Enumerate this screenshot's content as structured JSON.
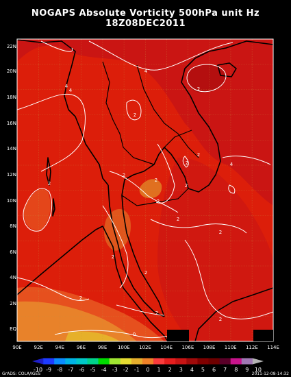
{
  "title": "NOGAPS Absolute Vorticity 500hPa unit Hz",
  "subtitle": "18Z08DEC2011",
  "lat_labels": [
    "22N",
    "20N",
    "18N",
    "16N",
    "14N",
    "12N",
    "10N",
    "8N",
    "6N",
    "4N",
    "2N",
    "EQ"
  ],
  "lon_labels": [
    "90E",
    "92E",
    "94E",
    "96E",
    "98E",
    "100E",
    "102E",
    "104E",
    "106E",
    "108E",
    "110E",
    "112E",
    "114E"
  ],
  "contour_labels": [
    "4",
    "4",
    "4",
    "2",
    "2",
    "2",
    "2",
    "2",
    "2",
    "2",
    "2",
    "2",
    "2",
    "2",
    "2",
    "2",
    "2",
    "2",
    "2",
    "0",
    "4"
  ],
  "colorbar": {
    "labels": [
      "-10",
      "-9",
      "-8",
      "-7",
      "-6",
      "-5",
      "-4",
      "-3",
      "-2",
      "-1",
      "0",
      "1",
      "2",
      "3",
      "4",
      "5",
      "6",
      "7",
      "8",
      "9",
      "10"
    ],
    "colors": [
      "#1e1ec8",
      "#1e3cff",
      "#0a8cff",
      "#00b4e6",
      "#00c8c8",
      "#00d28c",
      "#00dc00",
      "#a0e632",
      "#e6dc32",
      "#e6af2d",
      "#f08228",
      "#fa3c3c",
      "#e61e1e",
      "#c81414",
      "#a00a0a",
      "#800000",
      "#6e0000",
      "#5a0028",
      "#c8148c",
      "#a078b4",
      "#b4b4b4"
    ]
  },
  "credit": "GrADS: COLA/IGES",
  "timestamp": "2011-12-08-14:32"
}
